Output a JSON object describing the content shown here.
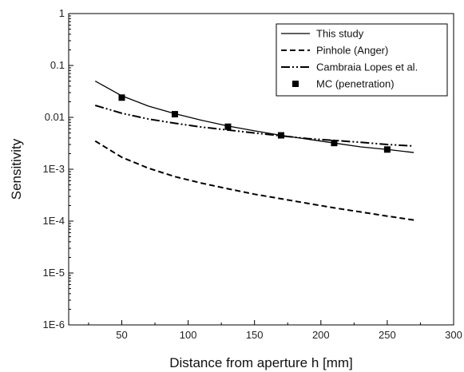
{
  "chart_data": {
    "type": "line",
    "xlabel": "Distance from aperture h [mm]",
    "ylabel": "Sensitivity",
    "xlim": [
      10,
      300
    ],
    "ylim": [
      1e-06,
      1
    ],
    "y_scale": "log",
    "grid": false,
    "legend_position": "top-right",
    "x_ticks": [
      {
        "value": 50,
        "label": "50"
      },
      {
        "value": 100,
        "label": "100"
      },
      {
        "value": 150,
        "label": "150"
      },
      {
        "value": 200,
        "label": "200"
      },
      {
        "value": 250,
        "label": "250"
      },
      {
        "value": 300,
        "label": "300"
      }
    ],
    "y_ticks": [
      {
        "value": 1,
        "label": "1"
      },
      {
        "value": 0.1,
        "label": "0.1"
      },
      {
        "value": 0.01,
        "label": "0.01"
      },
      {
        "value": 0.001,
        "label": "1E-3"
      },
      {
        "value": 0.0001,
        "label": "1E-4"
      },
      {
        "value": 1e-05,
        "label": "1E-5"
      },
      {
        "value": 1e-06,
        "label": "1E-6"
      }
    ],
    "series": [
      {
        "name": "This study",
        "style": "solid",
        "marker": "none",
        "color": "#000000",
        "x": [
          30,
          50,
          70,
          90,
          110,
          130,
          150,
          170,
          190,
          210,
          230,
          250,
          270
        ],
        "y": [
          0.05,
          0.026,
          0.0165,
          0.0118,
          0.0088,
          0.0068,
          0.0055,
          0.0045,
          0.0038,
          0.0032,
          0.0027,
          0.0024,
          0.0021
        ]
      },
      {
        "name": "Pinhole (Anger)",
        "style": "dashed",
        "marker": "none",
        "color": "#000000",
        "x": [
          30,
          50,
          70,
          90,
          110,
          130,
          150,
          170,
          190,
          210,
          230,
          250,
          270
        ],
        "y": [
          0.0035,
          0.0017,
          0.00105,
          0.00072,
          0.00054,
          0.00042,
          0.00033,
          0.00027,
          0.00022,
          0.00018,
          0.00015,
          0.000125,
          0.000105
        ]
      },
      {
        "name": "Cambraia Lopes et al.",
        "style": "dash-dot-dot",
        "marker": "none",
        "color": "#000000",
        "x": [
          30,
          50,
          70,
          90,
          110,
          130,
          150,
          170,
          190,
          210,
          230,
          250,
          270
        ],
        "y": [
          0.017,
          0.012,
          0.0093,
          0.0077,
          0.0065,
          0.0057,
          0.005,
          0.0044,
          0.0039,
          0.0036,
          0.0033,
          0.003,
          0.0028
        ]
      },
      {
        "name": "MC (penetration)",
        "style": "none",
        "marker": "square",
        "color": "#000000",
        "x": [
          50,
          90,
          130,
          170,
          210,
          250
        ],
        "y": [
          0.024,
          0.0115,
          0.0066,
          0.0045,
          0.0032,
          0.0024
        ]
      }
    ]
  }
}
